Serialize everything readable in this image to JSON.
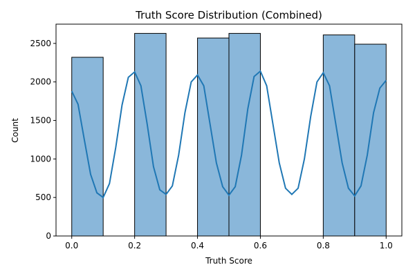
{
  "chart_data": {
    "type": "bar",
    "title": "Truth Score Distribution (Combined)",
    "xlabel": "Truth Score",
    "ylabel": "Count",
    "xlim": [
      -0.05,
      1.05
    ],
    "ylim": [
      0,
      2750
    ],
    "xticks": [
      0.0,
      0.2,
      0.4,
      0.6,
      0.8,
      1.0
    ],
    "xtick_labels": [
      "0.0",
      "0.2",
      "0.4",
      "0.6",
      "0.8",
      "1.0"
    ],
    "yticks": [
      0,
      500,
      1000,
      1500,
      2000,
      2500
    ],
    "ytick_labels": [
      "0",
      "500",
      "1000",
      "1500",
      "2000",
      "2500"
    ],
    "bins": [
      {
        "x0": 0.0,
        "x1": 0.1,
        "count": 2320
      },
      {
        "x0": 0.1,
        "x1": 0.2,
        "count": 0
      },
      {
        "x0": 0.2,
        "x1": 0.3,
        "count": 2630
      },
      {
        "x0": 0.3,
        "x1": 0.4,
        "count": 0
      },
      {
        "x0": 0.4,
        "x1": 0.5,
        "count": 2570
      },
      {
        "x0": 0.5,
        "x1": 0.6,
        "count": 2630
      },
      {
        "x0": 0.6,
        "x1": 0.7,
        "count": 0
      },
      {
        "x0": 0.7,
        "x1": 0.8,
        "count": 0
      },
      {
        "x0": 0.8,
        "x1": 0.9,
        "count": 2610
      },
      {
        "x0": 0.9,
        "x1": 1.0,
        "count": 2490
      }
    ],
    "kde": {
      "x": [
        0.0,
        0.02,
        0.04,
        0.06,
        0.08,
        0.1,
        0.12,
        0.14,
        0.16,
        0.18,
        0.2,
        0.22,
        0.24,
        0.26,
        0.28,
        0.3,
        0.32,
        0.34,
        0.36,
        0.38,
        0.4,
        0.42,
        0.44,
        0.46,
        0.48,
        0.5,
        0.52,
        0.54,
        0.56,
        0.58,
        0.6,
        0.62,
        0.64,
        0.66,
        0.68,
        0.7,
        0.72,
        0.74,
        0.76,
        0.78,
        0.8,
        0.82,
        0.84,
        0.86,
        0.88,
        0.9,
        0.92,
        0.94,
        0.96,
        0.98,
        1.0
      ],
      "y": [
        1880,
        1710,
        1250,
        800,
        560,
        500,
        680,
        1150,
        1700,
        2060,
        2130,
        1950,
        1450,
        900,
        600,
        540,
        650,
        1050,
        1600,
        2000,
        2090,
        1950,
        1450,
        950,
        640,
        530,
        640,
        1050,
        1650,
        2070,
        2140,
        1950,
        1450,
        950,
        620,
        540,
        620,
        1000,
        1550,
        2000,
        2120,
        1950,
        1450,
        950,
        620,
        520,
        650,
        1050,
        1600,
        1920,
        2020
      ],
      "color": "#1f77b4"
    },
    "colors": {
      "bar_fill": "#8ab7da",
      "bar_edge": "#000000",
      "kde_line": "#1f77b4"
    },
    "grid": false
  }
}
